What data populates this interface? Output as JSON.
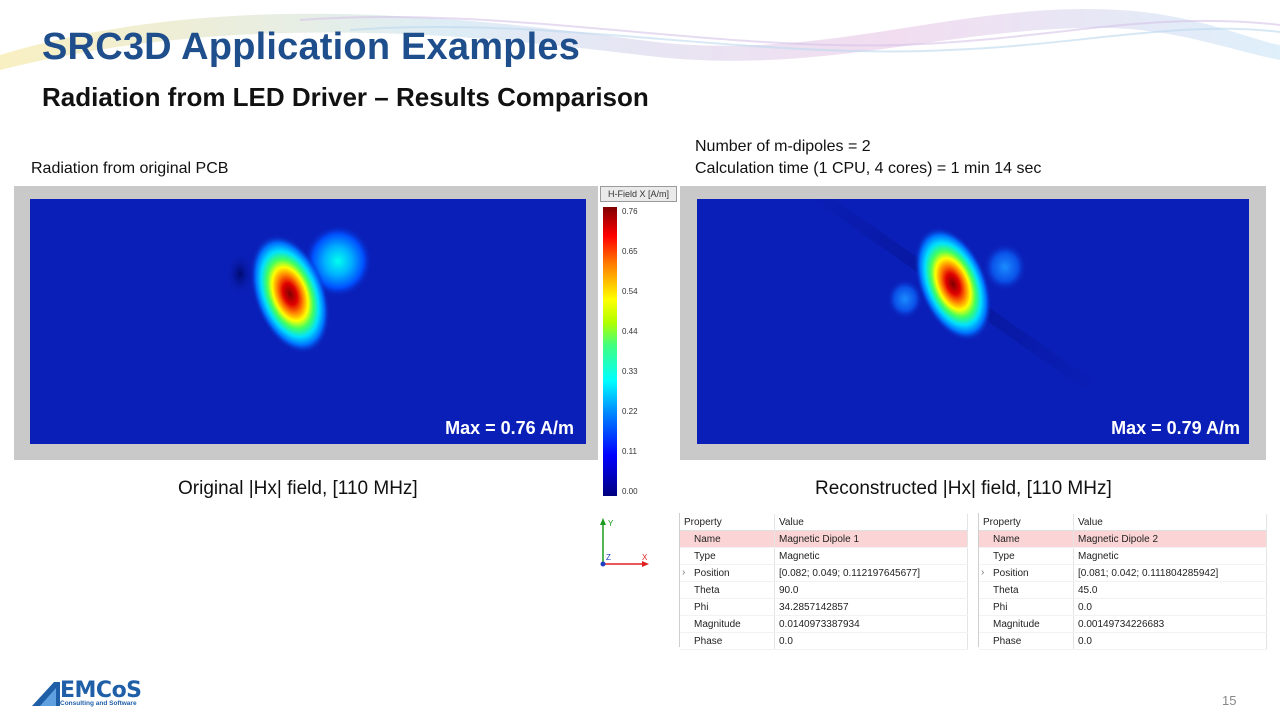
{
  "slide": {
    "title": "SRC3D Application Examples",
    "subtitle": "Radiation from LED Driver – Results Comparison",
    "page_number": "15"
  },
  "left_panel": {
    "heading": "Radiation from original PCB",
    "max_label": "Max = 0.76 A/m",
    "caption": "Original |Hx| field, [110 MHz]"
  },
  "right_panel": {
    "info_line1": "Number of m-dipoles = 2",
    "info_line2": "Calculation time (1 CPU, 4 cores) = 1 min 14 sec",
    "max_label": "Max = 0.79 A/m",
    "caption": "Reconstructed |Hx| field, [110 MHz]"
  },
  "colorbar": {
    "title": "H-Field X [A/m]",
    "ticks": [
      "0.76",
      "0.65",
      "0.54",
      "0.44",
      "0.33",
      "0.22",
      "0.11",
      "0.00"
    ]
  },
  "axes_widget": {
    "y": "Y",
    "z": "Z",
    "x": "X"
  },
  "property_tables": [
    {
      "header": [
        "Property",
        "Value"
      ],
      "rows": [
        {
          "property": "Name",
          "value": "Magnetic Dipole 1"
        },
        {
          "property": "Type",
          "value": "Magnetic"
        },
        {
          "property": "Position",
          "value": "[0.082; 0.049; 0.112197645677]"
        },
        {
          "property": "Theta",
          "value": "90.0"
        },
        {
          "property": "Phi",
          "value": "34.2857142857"
        },
        {
          "property": "Magnitude",
          "value": "0.0140973387934"
        },
        {
          "property": "Phase",
          "value": "0.0"
        }
      ]
    },
    {
      "header": [
        "Property",
        "Value"
      ],
      "rows": [
        {
          "property": "Name",
          "value": "Magnetic Dipole 2"
        },
        {
          "property": "Type",
          "value": "Magnetic"
        },
        {
          "property": "Position",
          "value": "[0.081; 0.042; 0.111804285942]"
        },
        {
          "property": "Theta",
          "value": "45.0"
        },
        {
          "property": "Phi",
          "value": "0.0"
        },
        {
          "property": "Magnitude",
          "value": "0.00149734226683"
        },
        {
          "property": "Phase",
          "value": "0.0"
        }
      ]
    }
  ],
  "logo": {
    "name": "EMCoS",
    "tagline": "Consulting and Software"
  },
  "colors": {
    "title_blue": "#1f4e8c",
    "field_background": "#0a1fb8",
    "selected_row": "#fbd5d5"
  }
}
